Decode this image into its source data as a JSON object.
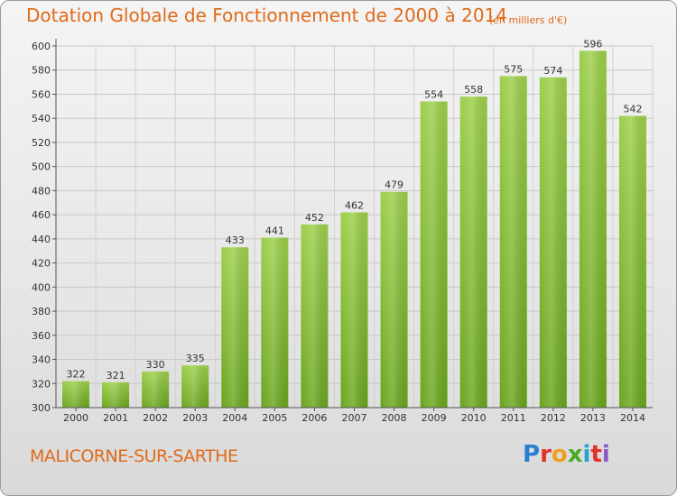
{
  "header": {
    "title": "Dotation Globale de Fonctionnement de 2000 à 2014",
    "unit": "(en milliers d'€)"
  },
  "footer": {
    "commune": "MALICORNE-SUR-SARTHE",
    "brand": "Proxiti",
    "brand_colors": [
      "#2a7fd4",
      "#e0312a",
      "#f0a020",
      "#4aaa2a",
      "#2a9fd4",
      "#e0312a",
      "#8a5ac8"
    ]
  },
  "colors": {
    "accent": "#e06a1a",
    "bar_light": "#9ccf4a",
    "bar_dark": "#6aa51e"
  },
  "chart_data": {
    "type": "bar",
    "title": "Dotation Globale de Fonctionnement de 2000 à 2014",
    "subtitle": "(en milliers d'€)",
    "xlabel": "",
    "ylabel": "",
    "categories": [
      "2000",
      "2001",
      "2002",
      "2003",
      "2004",
      "2005",
      "2006",
      "2007",
      "2008",
      "2009",
      "2010",
      "2011",
      "2012",
      "2013",
      "2014"
    ],
    "values": [
      322,
      321,
      330,
      335,
      433,
      441,
      452,
      462,
      479,
      554,
      558,
      575,
      574,
      596,
      542
    ],
    "ylim": [
      300,
      600
    ],
    "yticks": [
      300,
      320,
      340,
      360,
      380,
      400,
      420,
      440,
      460,
      480,
      500,
      520,
      540,
      560,
      580,
      600
    ],
    "grid": true,
    "legend": "none"
  }
}
